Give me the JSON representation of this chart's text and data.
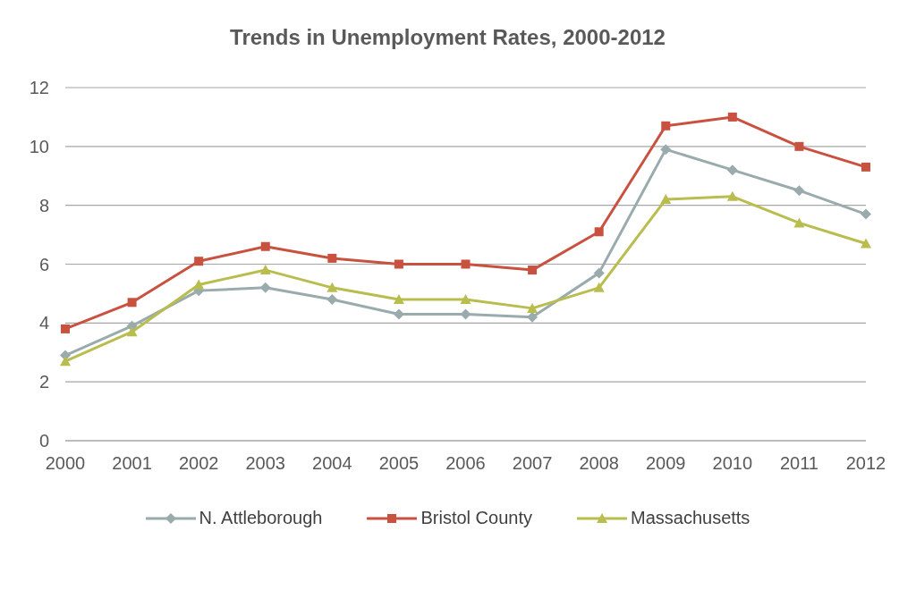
{
  "chart_data": {
    "type": "line",
    "title": "Trends in Unemployment Rates, 2000-2012",
    "categories": [
      "2000",
      "2001",
      "2002",
      "2003",
      "2004",
      "2005",
      "2006",
      "2007",
      "2008",
      "2009",
      "2010",
      "2011",
      "2012"
    ],
    "series": [
      {
        "name": "N. Attleborough",
        "color": "#9aabad",
        "marker": "diamond",
        "values": [
          2.9,
          3.9,
          5.1,
          5.2,
          4.8,
          4.3,
          4.3,
          4.2,
          5.7,
          9.9,
          9.2,
          8.5,
          7.7
        ]
      },
      {
        "name": "Bristol County",
        "color": "#c9513f",
        "marker": "square",
        "values": [
          3.8,
          4.7,
          6.1,
          6.6,
          6.2,
          6.0,
          6.0,
          5.8,
          7.1,
          10.7,
          11.0,
          10.0,
          9.3
        ]
      },
      {
        "name": "Massachusetts",
        "color": "#b9bd4e",
        "marker": "triangle",
        "values": [
          2.7,
          3.7,
          5.3,
          5.8,
          5.2,
          4.8,
          4.8,
          4.5,
          5.2,
          8.2,
          8.3,
          7.4,
          6.7
        ]
      }
    ],
    "ylim": [
      0,
      12
    ],
    "yticks": [
      0,
      2,
      4,
      6,
      8,
      10,
      12
    ],
    "grid": "y",
    "legend": "bottom"
  }
}
